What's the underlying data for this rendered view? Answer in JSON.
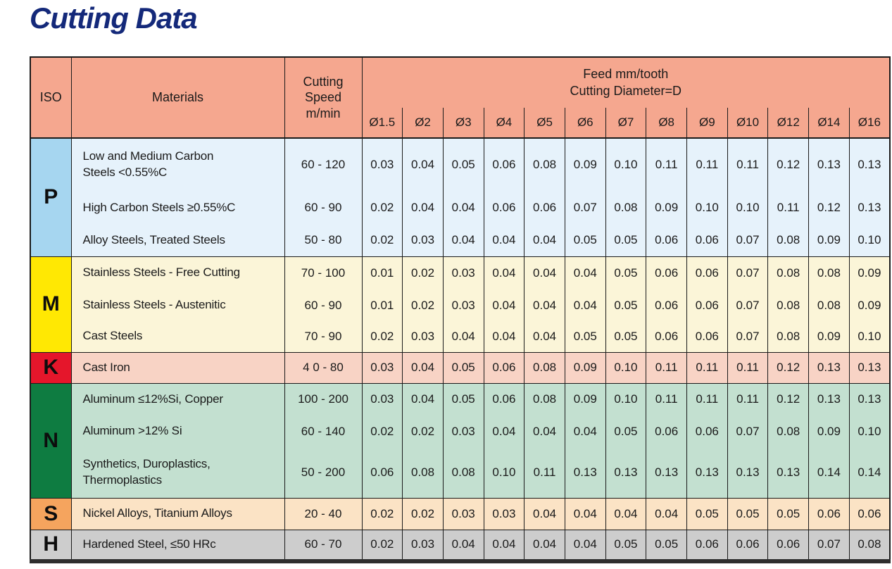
{
  "page_title": "Cutting Data",
  "colors": {
    "title": "#14297A",
    "header_bg": "#F5A78F",
    "border": "#1A1A1A"
  },
  "table": {
    "col_headers": {
      "iso": "ISO",
      "materials": "Materials",
      "speed": "Cutting\nSpeed\nm/min",
      "feed_title": "Feed mm/tooth",
      "feed_subtitle": "Cutting Diameter=D"
    },
    "diameter_columns": [
      "Ø1.5",
      "Ø2",
      "Ø3",
      "Ø4",
      "Ø5",
      "Ø6",
      "Ø7",
      "Ø8",
      "Ø9",
      "Ø10",
      "Ø12",
      "Ø14",
      "Ø16"
    ],
    "groups": [
      {
        "iso": "P",
        "iso_bg": "#A6D6F0",
        "row_bg": "#E6F2FB",
        "rows": [
          {
            "material": "Low and Medium Carbon\nSteels <0.55%C",
            "speed": "60 - 120",
            "feeds": [
              "0.03",
              "0.04",
              "0.05",
              "0.06",
              "0.08",
              "0.09",
              "0.10",
              "0.11",
              "0.11",
              "0.11",
              "0.12",
              "0.13",
              "0.13"
            ]
          },
          {
            "material": "High Carbon Steels ≥0.55%C",
            "speed": "60 - 90",
            "feeds": [
              "0.02",
              "0.04",
              "0.04",
              "0.06",
              "0.06",
              "0.07",
              "0.08",
              "0.09",
              "0.10",
              "0.10",
              "0.11",
              "0.12",
              "0.13"
            ]
          },
          {
            "material": "Alloy Steels, Treated Steels",
            "speed": "50 - 80",
            "feeds": [
              "0.02",
              "0.03",
              "0.04",
              "0.04",
              "0.04",
              "0.05",
              "0.05",
              "0.06",
              "0.06",
              "0.07",
              "0.08",
              "0.09",
              "0.10"
            ]
          }
        ]
      },
      {
        "iso": "M",
        "iso_bg": "#FFE803",
        "row_bg": "#FBF5D8",
        "rows": [
          {
            "material": "Stainless Steels - Free Cutting",
            "speed": "70 - 100",
            "feeds": [
              "0.01",
              "0.02",
              "0.03",
              "0.04",
              "0.04",
              "0.04",
              "0.05",
              "0.06",
              "0.06",
              "0.07",
              "0.08",
              "0.08",
              "0.09"
            ]
          },
          {
            "material": "Stainless Steels - Austenitic",
            "speed": "60 - 90",
            "feeds": [
              "0.01",
              "0.02",
              "0.03",
              "0.04",
              "0.04",
              "0.04",
              "0.05",
              "0.06",
              "0.06",
              "0.07",
              "0.08",
              "0.08",
              "0.09"
            ]
          },
          {
            "material": "Cast Steels",
            "speed": "70 - 90",
            "feeds": [
              "0.02",
              "0.03",
              "0.04",
              "0.04",
              "0.04",
              "0.05",
              "0.05",
              "0.06",
              "0.06",
              "0.07",
              "0.08",
              "0.09",
              "0.10"
            ]
          }
        ]
      },
      {
        "iso": "K",
        "iso_bg": "#E5162B",
        "row_bg": "#F8D3C5",
        "rows": [
          {
            "material": "Cast Iron",
            "speed": "4 0 - 80",
            "feeds": [
              "0.03",
              "0.04",
              "0.05",
              "0.06",
              "0.08",
              "0.09",
              "0.10",
              "0.11",
              "0.11",
              "0.11",
              "0.12",
              "0.13",
              "0.13"
            ]
          }
        ]
      },
      {
        "iso": "N",
        "iso_bg": "#0E7C41",
        "row_bg": "#C3E0D0",
        "rows": [
          {
            "material": "Aluminum ≤12%Si, Copper",
            "speed": "100 - 200",
            "feeds": [
              "0.03",
              "0.04",
              "0.05",
              "0.06",
              "0.08",
              "0.09",
              "0.10",
              "0.11",
              "0.11",
              "0.11",
              "0.12",
              "0.13",
              "0.13"
            ]
          },
          {
            "material": "Aluminum >12% Si",
            "speed": "60 - 140",
            "feeds": [
              "0.02",
              "0.02",
              "0.03",
              "0.04",
              "0.04",
              "0.04",
              "0.05",
              "0.06",
              "0.06",
              "0.07",
              "0.08",
              "0.09",
              "0.10"
            ]
          },
          {
            "material": "Synthetics, Duroplastics,\nThermoplastics",
            "speed": "50 - 200",
            "feeds": [
              "0.06",
              "0.08",
              "0.08",
              "0.10",
              "0.11",
              "0.13",
              "0.13",
              "0.13",
              "0.13",
              "0.13",
              "0.13",
              "0.14",
              "0.14"
            ]
          }
        ]
      },
      {
        "iso": "S",
        "iso_bg": "#F5A45E",
        "row_bg": "#FBE3C5",
        "rows": [
          {
            "material": "Nickel Alloys, Titanium Alloys",
            "speed": "20 - 40",
            "feeds": [
              "0.02",
              "0.02",
              "0.03",
              "0.03",
              "0.04",
              "0.04",
              "0.04",
              "0.04",
              "0.05",
              "0.05",
              "0.05",
              "0.06",
              "0.06"
            ]
          }
        ]
      },
      {
        "iso": "H",
        "iso_bg": "#CDCDCD",
        "row_bg": "#CDCDCD",
        "rows": [
          {
            "material": "Hardened Steel, ≤50 HRc",
            "speed": "60 - 70",
            "feeds": [
              "0.02",
              "0.03",
              "0.04",
              "0.04",
              "0.04",
              "0.04",
              "0.05",
              "0.05",
              "0.06",
              "0.06",
              "0.06",
              "0.07",
              "0.08"
            ]
          }
        ]
      }
    ]
  }
}
